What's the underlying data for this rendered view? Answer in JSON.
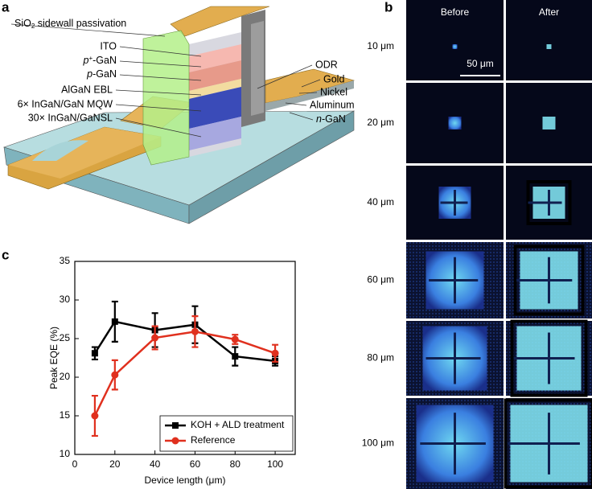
{
  "panels": {
    "a": "a",
    "b": "b",
    "c": "c"
  },
  "diagram": {
    "labels": [
      [
        "SiO",
        "2",
        " sidewall passivation"
      ],
      "ITO",
      [
        "p",
        "+",
        "-GaN"
      ],
      [
        "p",
        "-GaN"
      ],
      "AlGaN EBL",
      "6× InGaN/GaN MQW",
      "30× InGaN/GaNSL",
      "ODR",
      "Gold",
      "Nickel",
      "Aluminum",
      [
        "n",
        "-GaN"
      ]
    ]
  },
  "micrographs": {
    "columns": [
      "Before",
      "After"
    ],
    "rows": [
      "10 μm",
      "20 μm",
      "40 μm",
      "60 μm",
      "80 μm",
      "100 μm"
    ],
    "scale_bar": "50 μm"
  },
  "chart_data": {
    "type": "line",
    "x_label": "Device length (μm)",
    "y_label": "Peak EQE (%)",
    "x": [
      10,
      20,
      40,
      60,
      80,
      100
    ],
    "series": [
      {
        "name": "KOH + ALD treatment",
        "color": "#000000",
        "marker": "square",
        "values": [
          23.1,
          27.2,
          26.1,
          26.8,
          22.7,
          22.1
        ],
        "errors": [
          0.8,
          2.6,
          2.2,
          2.4,
          1.2,
          0.6
        ]
      },
      {
        "name": "Reference",
        "color": "#e0301e",
        "marker": "circle",
        "values": [
          15.0,
          20.3,
          25.1,
          25.9,
          24.9,
          23.1
        ],
        "errors": [
          2.6,
          1.9,
          1.5,
          2.0,
          0.6,
          1.1
        ]
      }
    ],
    "xlim": [
      0,
      110
    ],
    "xticks": [
      0,
      20,
      40,
      60,
      80,
      100
    ],
    "ylim": [
      10,
      35
    ],
    "yticks": [
      10,
      15,
      20,
      25,
      30,
      35
    ],
    "legend": "lower right"
  }
}
